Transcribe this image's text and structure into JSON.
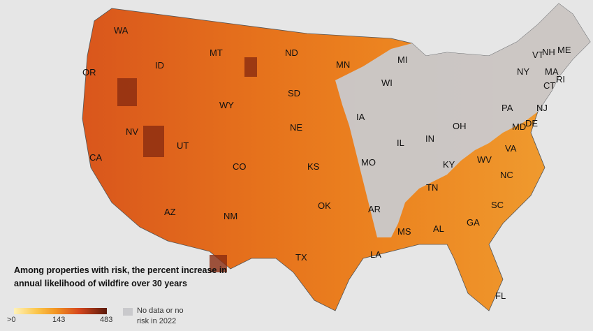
{
  "legend": {
    "title": "Among properties with risk, the percent increase in annual likelihood of wildfire over 30 years",
    "scale_min": ">0",
    "scale_mid": "143",
    "scale_max": "483",
    "no_data_label": "No data or no risk in 2022"
  },
  "colors": {
    "low": "#fff2b8",
    "mid": "#f29522",
    "high": "#5b1a0c",
    "no_data": "#c9c9cc",
    "background": "#e6e6e6"
  },
  "states": [
    "WA",
    "OR",
    "CA",
    "ID",
    "NV",
    "MT",
    "WY",
    "UT",
    "AZ",
    "CO",
    "NM",
    "ND",
    "SD",
    "NE",
    "KS",
    "OK",
    "TX",
    "MN",
    "IA",
    "MO",
    "AR",
    "LA",
    "WI",
    "IL",
    "MI",
    "IN",
    "OH",
    "KY",
    "TN",
    "MS",
    "AL",
    "GA",
    "FL",
    "SC",
    "NC",
    "VA",
    "WV",
    "PA",
    "NY",
    "ME",
    "VT",
    "NH",
    "MA",
    "CT",
    "RI",
    "NJ",
    "DE",
    "MD"
  ]
}
